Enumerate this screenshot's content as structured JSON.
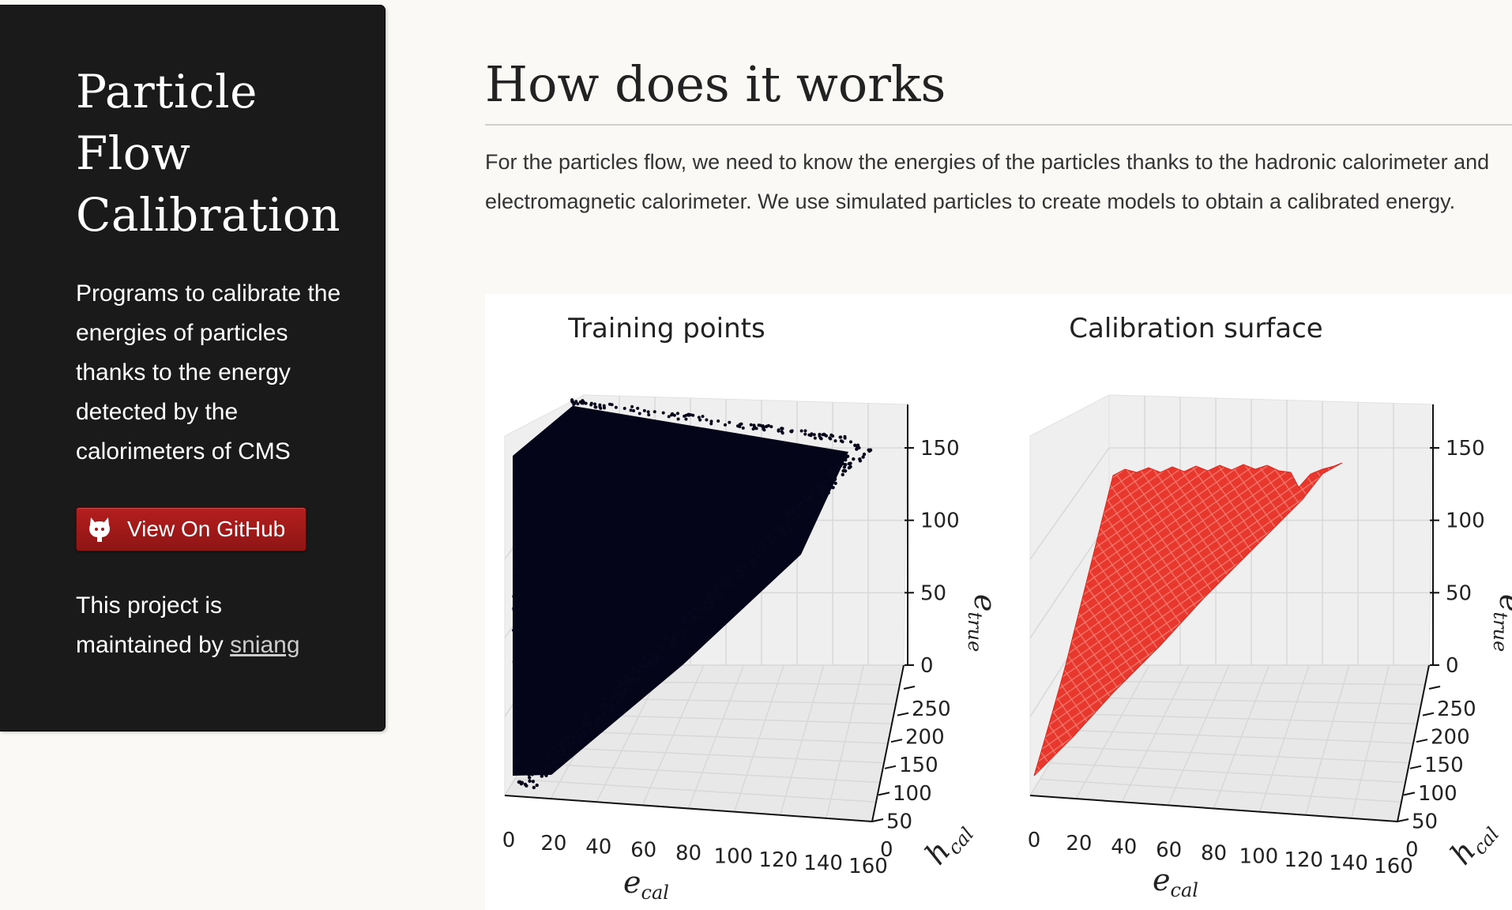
{
  "sidebar": {
    "title_lines": [
      "Particle",
      "Flow",
      "Calibration"
    ],
    "description": "Programs to calibrate the energies of particles thanks to the energy detected by the calorimeters of CMS",
    "github_button": {
      "label": "View On GitHub",
      "icon": "github-octocat-icon"
    },
    "maintained_prefix": "This project is maintained by",
    "maintainer": "sniang"
  },
  "main": {
    "heading": "How does it works",
    "intro": "For the particles flow, we need to know the energies of the particles thanks to the hadronic calorimeter and electromagnetic calorimeter. We use simulated particles to create models to obtain a calibrated energy."
  },
  "colors": {
    "sidebar_bg": "#1a1a1a",
    "button_red": "#9e1818",
    "points": "#07071c",
    "surface": "#e8382e"
  },
  "chart_data": [
    {
      "type": "scatter",
      "title": "Training points",
      "xlabel": "e",
      "xlabel_sub": "cal",
      "ylabel": "h",
      "ylabel_sub": "cal",
      "zlabel": "e",
      "zlabel_sub": "true",
      "x_ticks": [
        "0",
        "20",
        "40",
        "60",
        "80",
        "100",
        "120",
        "140",
        "160"
      ],
      "y_ticks": [
        "0",
        "50",
        "100",
        "150",
        "200",
        "250"
      ],
      "z_ticks": [
        "0",
        "50",
        "100",
        "150"
      ],
      "point_color": "#07071c"
    },
    {
      "type": "surface",
      "title": "Calibration surface",
      "xlabel": "e",
      "xlabel_sub": "cal",
      "ylabel": "h",
      "ylabel_sub": "cal",
      "zlabel": "e",
      "zlabel_sub": "true",
      "x_ticks": [
        "0",
        "20",
        "40",
        "60",
        "80",
        "100",
        "120",
        "140",
        "160"
      ],
      "y_ticks": [
        "0",
        "50",
        "100",
        "150",
        "200",
        "250"
      ],
      "z_ticks": [
        "0",
        "50",
        "100",
        "150"
      ],
      "surface_color": "#e8382e"
    }
  ]
}
